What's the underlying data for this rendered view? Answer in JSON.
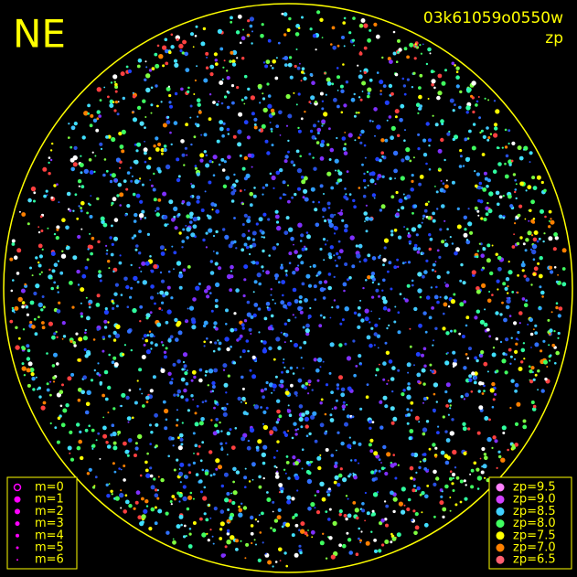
{
  "header": {
    "title": "NE",
    "image_id": "03k61059o0550w",
    "mode": "zp"
  },
  "magnitude_legend": {
    "items": [
      {
        "label": "m=0",
        "color": "#ff00ff"
      },
      {
        "label": "m=1",
        "color": "#ff00ff"
      },
      {
        "label": "m=2",
        "color": "#ff00ff"
      },
      {
        "label": "m=3",
        "color": "#ff00ff"
      },
      {
        "label": "m=4",
        "color": "#ff00ff"
      },
      {
        "label": "m=5",
        "color": "#ff00ff"
      },
      {
        "label": "m=6",
        "color": "#ff00ff"
      }
    ]
  },
  "zp_legend": {
    "items": [
      {
        "label": "zp=9.5",
        "color": "#ff80ff"
      },
      {
        "label": "zp=9.0",
        "color": "#d040ff"
      },
      {
        "label": "zp=8.5",
        "color": "#40d0ff"
      },
      {
        "label": "zp=8.0",
        "color": "#40ff60"
      },
      {
        "label": "zp=7.5",
        "color": "#ffff00"
      },
      {
        "label": "zp=7.0",
        "color": "#ff8000"
      },
      {
        "label": "zp=6.5",
        "color": "#ff6070"
      }
    ]
  }
}
